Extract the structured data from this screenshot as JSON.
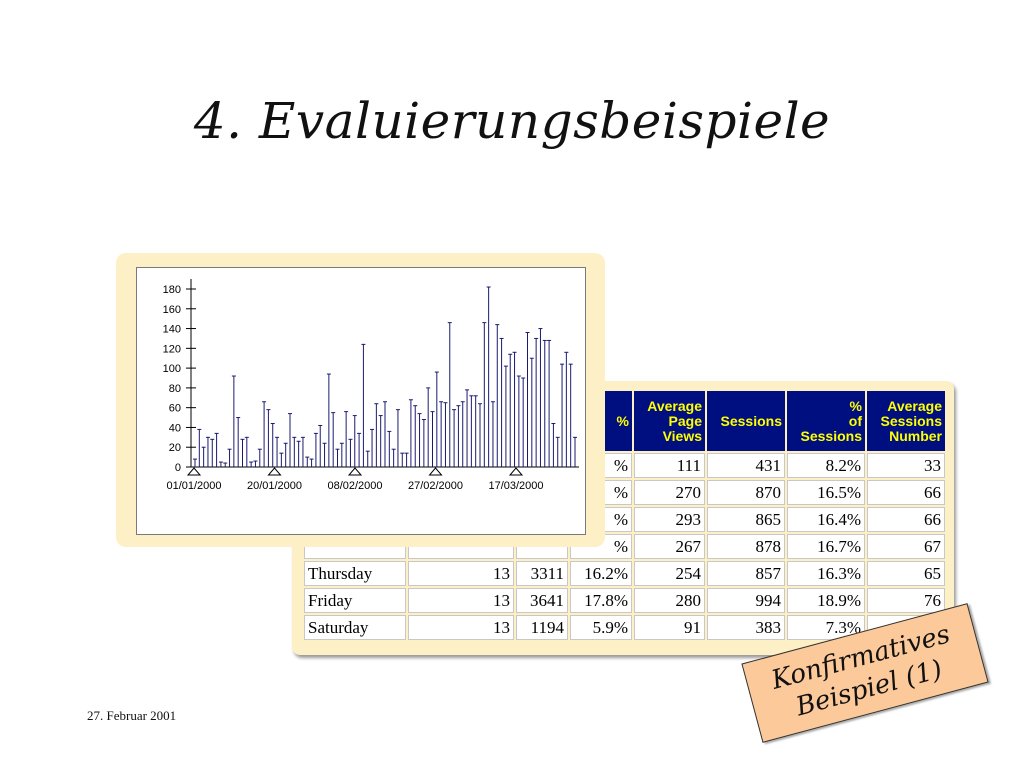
{
  "slide": {
    "title": "4. Evaluierungsbeispiele",
    "footer_date": "27. Februar 2001",
    "note_line1": "Konfirmatives",
    "note_line2": "Beispiel (1)"
  },
  "table": {
    "headers": [
      "",
      "",
      "",
      "%",
      "Average Page Views",
      "Sessions",
      "% of Sessions",
      "Average Sessions Number"
    ],
    "rows": [
      {
        "day": "",
        "c1": "",
        "c2": "",
        "c3": "%",
        "apv": "111",
        "sessions": "431",
        "pct_sessions": "8.2%",
        "avg_sessions": "33"
      },
      {
        "day": "",
        "c1": "",
        "c2": "",
        "c3": "%",
        "apv": "270",
        "sessions": "870",
        "pct_sessions": "16.5%",
        "avg_sessions": "66"
      },
      {
        "day": "",
        "c1": "",
        "c2": "",
        "c3": "%",
        "apv": "293",
        "sessions": "865",
        "pct_sessions": "16.4%",
        "avg_sessions": "66"
      },
      {
        "day": "",
        "c1": "",
        "c2": "",
        "c3": "%",
        "apv": "267",
        "sessions": "878",
        "pct_sessions": "16.7%",
        "avg_sessions": "67"
      },
      {
        "day": "Thursday",
        "c1": "13",
        "c2": "3311",
        "c3": "16.2%",
        "apv": "254",
        "sessions": "857",
        "pct_sessions": "16.3%",
        "avg_sessions": "65"
      },
      {
        "day": "Friday",
        "c1": "13",
        "c2": "3641",
        "c3": "17.8%",
        "apv": "280",
        "sessions": "994",
        "pct_sessions": "18.9%",
        "avg_sessions": "76"
      },
      {
        "day": "Saturday",
        "c1": "13",
        "c2": "1194",
        "c3": "5.9%",
        "apv": "91",
        "sessions": "383",
        "pct_sessions": "7.3%",
        "avg_sessions": ""
      }
    ]
  },
  "chart_data": {
    "type": "bar",
    "title": "",
    "xlabel": "",
    "ylabel": "",
    "ylim": [
      0,
      180
    ],
    "yticks": [
      0,
      20,
      40,
      60,
      80,
      100,
      120,
      140,
      160,
      180
    ],
    "x_tick_labels": [
      "01/01/2000",
      "20/01/2000",
      "08/02/2000",
      "27/02/2000",
      "17/03/2000"
    ],
    "values": [
      8,
      38,
      20,
      30,
      28,
      34,
      5,
      4,
      18,
      92,
      50,
      28,
      30,
      5,
      6,
      18,
      66,
      58,
      44,
      30,
      14,
      24,
      54,
      30,
      26,
      30,
      10,
      8,
      34,
      42,
      24,
      94,
      55,
      18,
      24,
      56,
      28,
      52,
      34,
      124,
      16,
      38,
      64,
      52,
      66,
      36,
      18,
      58,
      14,
      14,
      68,
      62,
      54,
      48,
      80,
      56,
      96,
      66,
      65,
      146,
      58,
      62,
      66,
      78,
      72,
      72,
      64,
      146,
      182,
      66,
      144,
      130,
      102,
      114,
      116,
      92,
      90,
      136,
      110,
      130,
      140,
      128,
      128,
      44,
      30,
      104,
      116,
      104,
      30
    ],
    "grid": false,
    "colors": {
      "bar": "#1a1a70"
    }
  }
}
